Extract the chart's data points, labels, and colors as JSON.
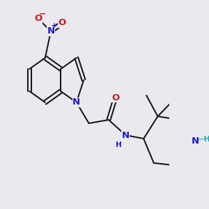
{
  "bg_color": "#eaeaee",
  "bond_color": "#1a1a1a",
  "bond_width": 1.5,
  "atom_colors": {
    "N": "#1a1acc",
    "O": "#cc1a1a",
    "H_label": "#22aaaa"
  },
  "font_size_atom": 9.5,
  "font_size_small": 7.5,
  "font_size_charge": 7.0
}
